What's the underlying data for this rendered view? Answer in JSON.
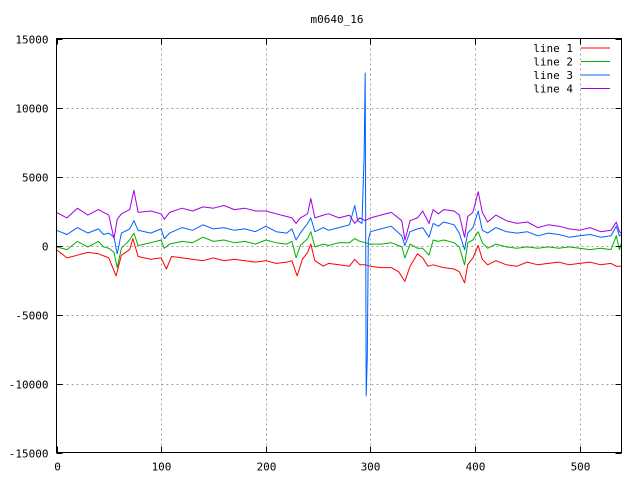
{
  "chart_data": {
    "type": "line",
    "title": "m0640_16",
    "xlabel": "",
    "ylabel": "",
    "xlim": [
      0,
      540
    ],
    "ylim": [
      -15000,
      15000
    ],
    "x_ticks": [
      0,
      100,
      200,
      300,
      400,
      500
    ],
    "y_ticks": [
      -15000,
      -10000,
      -5000,
      0,
      5000,
      10000,
      15000
    ],
    "grid": true,
    "legend_position": "top-right",
    "series": [
      {
        "name": "line 1",
        "color": "#ff0000",
        "points": [
          [
            0,
            -300
          ],
          [
            10,
            -900
          ],
          [
            20,
            -700
          ],
          [
            30,
            -500
          ],
          [
            40,
            -600
          ],
          [
            50,
            -900
          ],
          [
            57,
            -2200
          ],
          [
            62,
            -700
          ],
          [
            70,
            -300
          ],
          [
            73,
            500
          ],
          [
            78,
            -800
          ],
          [
            90,
            -1000
          ],
          [
            100,
            -900
          ],
          [
            105,
            -1700
          ],
          [
            110,
            -800
          ],
          [
            120,
            -900
          ],
          [
            130,
            -1000
          ],
          [
            140,
            -1100
          ],
          [
            150,
            -900
          ],
          [
            160,
            -1100
          ],
          [
            170,
            -1000
          ],
          [
            180,
            -1100
          ],
          [
            190,
            -1200
          ],
          [
            200,
            -1100
          ],
          [
            210,
            -1300
          ],
          [
            220,
            -1200
          ],
          [
            225,
            -1100
          ],
          [
            230,
            -2200
          ],
          [
            235,
            -1000
          ],
          [
            240,
            -500
          ],
          [
            243,
            100
          ],
          [
            247,
            -1100
          ],
          [
            255,
            -1500
          ],
          [
            260,
            -1300
          ],
          [
            270,
            -1400
          ],
          [
            280,
            -1500
          ],
          [
            285,
            -1000
          ],
          [
            290,
            -1400
          ],
          [
            295,
            -1400
          ],
          [
            300,
            -1500
          ],
          [
            310,
            -1600
          ],
          [
            320,
            -1600
          ],
          [
            327,
            -1900
          ],
          [
            333,
            -2600
          ],
          [
            338,
            -1500
          ],
          [
            345,
            -600
          ],
          [
            350,
            -900
          ],
          [
            355,
            -1500
          ],
          [
            360,
            -1400
          ],
          [
            370,
            -1600
          ],
          [
            380,
            -1700
          ],
          [
            385,
            -1900
          ],
          [
            390,
            -2700
          ],
          [
            393,
            -1400
          ],
          [
            398,
            -900
          ],
          [
            403,
            0
          ],
          [
            407,
            -1000
          ],
          [
            412,
            -1400
          ],
          [
            420,
            -1100
          ],
          [
            430,
            -1400
          ],
          [
            440,
            -1500
          ],
          [
            450,
            -1200
          ],
          [
            460,
            -1400
          ],
          [
            470,
            -1300
          ],
          [
            480,
            -1200
          ],
          [
            490,
            -1400
          ],
          [
            500,
            -1300
          ],
          [
            510,
            -1200
          ],
          [
            520,
            -1400
          ],
          [
            530,
            -1300
          ],
          [
            535,
            -1500
          ],
          [
            540,
            -1500
          ]
        ]
      },
      {
        "name": "line 2",
        "color": "#00b000",
        "points": [
          [
            0,
            -100
          ],
          [
            10,
            -300
          ],
          [
            20,
            300
          ],
          [
            30,
            -100
          ],
          [
            40,
            300
          ],
          [
            45,
            -100
          ],
          [
            50,
            -200
          ],
          [
            55,
            -500
          ],
          [
            58,
            -1600
          ],
          [
            62,
            -200
          ],
          [
            70,
            400
          ],
          [
            74,
            900
          ],
          [
            78,
            0
          ],
          [
            90,
            200
          ],
          [
            100,
            400
          ],
          [
            103,
            -200
          ],
          [
            108,
            100
          ],
          [
            120,
            300
          ],
          [
            130,
            200
          ],
          [
            140,
            600
          ],
          [
            150,
            300
          ],
          [
            160,
            400
          ],
          [
            170,
            200
          ],
          [
            180,
            300
          ],
          [
            190,
            100
          ],
          [
            200,
            400
          ],
          [
            210,
            200
          ],
          [
            220,
            100
          ],
          [
            225,
            300
          ],
          [
            229,
            -900
          ],
          [
            233,
            0
          ],
          [
            240,
            500
          ],
          [
            243,
            1000
          ],
          [
            247,
            -100
          ],
          [
            255,
            100
          ],
          [
            260,
            0
          ],
          [
            270,
            200
          ],
          [
            280,
            200
          ],
          [
            285,
            500
          ],
          [
            290,
            300
          ],
          [
            295,
            200
          ],
          [
            300,
            100
          ],
          [
            310,
            100
          ],
          [
            320,
            200
          ],
          [
            330,
            -100
          ],
          [
            333,
            -900
          ],
          [
            338,
            100
          ],
          [
            345,
            -200
          ],
          [
            350,
            -200
          ],
          [
            356,
            -700
          ],
          [
            360,
            400
          ],
          [
            365,
            300
          ],
          [
            370,
            400
          ],
          [
            380,
            200
          ],
          [
            385,
            -100
          ],
          [
            390,
            -1400
          ],
          [
            393,
            200
          ],
          [
            398,
            400
          ],
          [
            403,
            1000
          ],
          [
            407,
            200
          ],
          [
            412,
            -200
          ],
          [
            420,
            100
          ],
          [
            430,
            -100
          ],
          [
            440,
            -200
          ],
          [
            450,
            -100
          ],
          [
            460,
            -200
          ],
          [
            470,
            -100
          ],
          [
            480,
            -200
          ],
          [
            490,
            -100
          ],
          [
            500,
            -200
          ],
          [
            510,
            -300
          ],
          [
            520,
            -200
          ],
          [
            530,
            -300
          ],
          [
            535,
            700
          ],
          [
            538,
            -300
          ],
          [
            540,
            200
          ]
        ]
      },
      {
        "name": "line 3",
        "color": "#0060ff",
        "points": [
          [
            0,
            1100
          ],
          [
            10,
            800
          ],
          [
            20,
            1300
          ],
          [
            30,
            900
          ],
          [
            40,
            1200
          ],
          [
            45,
            800
          ],
          [
            50,
            900
          ],
          [
            55,
            600
          ],
          [
            58,
            -600
          ],
          [
            62,
            900
          ],
          [
            70,
            1200
          ],
          [
            74,
            1800
          ],
          [
            78,
            1100
          ],
          [
            90,
            900
          ],
          [
            100,
            1200
          ],
          [
            103,
            500
          ],
          [
            108,
            900
          ],
          [
            120,
            1300
          ],
          [
            130,
            1100
          ],
          [
            140,
            1500
          ],
          [
            150,
            1200
          ],
          [
            160,
            1300
          ],
          [
            170,
            1100
          ],
          [
            180,
            1200
          ],
          [
            190,
            1000
          ],
          [
            200,
            1400
          ],
          [
            210,
            1000
          ],
          [
            220,
            900
          ],
          [
            225,
            1200
          ],
          [
            229,
            400
          ],
          [
            233,
            900
          ],
          [
            240,
            1600
          ],
          [
            243,
            2000
          ],
          [
            247,
            1000
          ],
          [
            255,
            1300
          ],
          [
            260,
            1100
          ],
          [
            270,
            1300
          ],
          [
            280,
            1500
          ],
          [
            285,
            2900
          ],
          [
            288,
            1800
          ],
          [
            292,
            1600
          ],
          [
            294,
            6500
          ],
          [
            295,
            12500
          ],
          [
            296,
            -10900
          ],
          [
            297,
            -8000
          ],
          [
            298,
            400
          ],
          [
            300,
            1000
          ],
          [
            310,
            1200
          ],
          [
            320,
            1400
          ],
          [
            330,
            700
          ],
          [
            333,
            0
          ],
          [
            338,
            1000
          ],
          [
            345,
            1200
          ],
          [
            350,
            1300
          ],
          [
            356,
            600
          ],
          [
            360,
            1600
          ],
          [
            365,
            1400
          ],
          [
            370,
            1700
          ],
          [
            380,
            1500
          ],
          [
            385,
            900
          ],
          [
            390,
            -300
          ],
          [
            393,
            900
          ],
          [
            398,
            1300
          ],
          [
            403,
            2500
          ],
          [
            407,
            1100
          ],
          [
            412,
            900
          ],
          [
            420,
            1300
          ],
          [
            430,
            1000
          ],
          [
            440,
            900
          ],
          [
            450,
            1000
          ],
          [
            460,
            700
          ],
          [
            470,
            900
          ],
          [
            480,
            800
          ],
          [
            490,
            600
          ],
          [
            500,
            700
          ],
          [
            510,
            800
          ],
          [
            520,
            600
          ],
          [
            530,
            700
          ],
          [
            535,
            1400
          ],
          [
            538,
            700
          ],
          [
            540,
            800
          ]
        ]
      },
      {
        "name": "line 4",
        "color": "#a000e0",
        "points": [
          [
            0,
            2400
          ],
          [
            10,
            2000
          ],
          [
            20,
            2700
          ],
          [
            30,
            2200
          ],
          [
            40,
            2600
          ],
          [
            45,
            2400
          ],
          [
            50,
            2200
          ],
          [
            55,
            500
          ],
          [
            58,
            1900
          ],
          [
            62,
            2300
          ],
          [
            70,
            2600
          ],
          [
            74,
            4000
          ],
          [
            78,
            2400
          ],
          [
            90,
            2500
          ],
          [
            100,
            2300
          ],
          [
            103,
            1900
          ],
          [
            108,
            2400
          ],
          [
            120,
            2700
          ],
          [
            130,
            2500
          ],
          [
            140,
            2800
          ],
          [
            150,
            2700
          ],
          [
            160,
            2900
          ],
          [
            170,
            2600
          ],
          [
            180,
            2700
          ],
          [
            190,
            2500
          ],
          [
            200,
            2500
          ],
          [
            210,
            2300
          ],
          [
            220,
            2100
          ],
          [
            225,
            2000
          ],
          [
            229,
            1600
          ],
          [
            233,
            2000
          ],
          [
            240,
            2300
          ],
          [
            243,
            3400
          ],
          [
            247,
            2000
          ],
          [
            255,
            2200
          ],
          [
            260,
            2300
          ],
          [
            270,
            2000
          ],
          [
            280,
            2200
          ],
          [
            285,
            1600
          ],
          [
            290,
            2000
          ],
          [
            295,
            1800
          ],
          [
            300,
            2000
          ],
          [
            310,
            2200
          ],
          [
            320,
            2400
          ],
          [
            330,
            1800
          ],
          [
            333,
            400
          ],
          [
            338,
            1800
          ],
          [
            345,
            2000
          ],
          [
            350,
            2500
          ],
          [
            356,
            1600
          ],
          [
            360,
            2600
          ],
          [
            365,
            2300
          ],
          [
            370,
            2600
          ],
          [
            380,
            2500
          ],
          [
            385,
            2200
          ],
          [
            390,
            600
          ],
          [
            393,
            2100
          ],
          [
            398,
            2400
          ],
          [
            403,
            3900
          ],
          [
            407,
            2400
          ],
          [
            412,
            1700
          ],
          [
            420,
            2200
          ],
          [
            430,
            1800
          ],
          [
            440,
            1600
          ],
          [
            450,
            1700
          ],
          [
            460,
            1300
          ],
          [
            470,
            1500
          ],
          [
            480,
            1400
          ],
          [
            490,
            1200
          ],
          [
            500,
            1100
          ],
          [
            510,
            1300
          ],
          [
            520,
            1000
          ],
          [
            530,
            1100
          ],
          [
            535,
            1700
          ],
          [
            538,
            1000
          ],
          [
            540,
            900
          ]
        ]
      }
    ]
  }
}
